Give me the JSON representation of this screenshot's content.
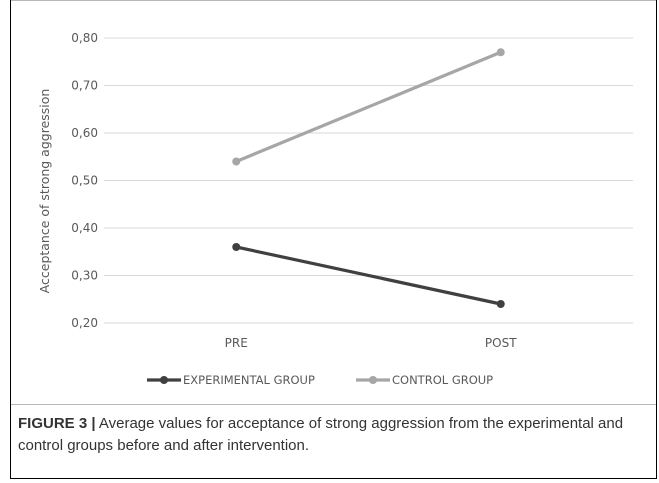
{
  "chart_data": {
    "type": "line",
    "categories": [
      "PRE",
      "POST"
    ],
    "series": [
      {
        "name": "EXPERIMENTAL GROUP",
        "values": [
          0.36,
          0.24
        ],
        "color": "#404040"
      },
      {
        "name": "CONTROL GROUP",
        "values": [
          0.54,
          0.77
        ],
        "color": "#a6a6a6"
      }
    ],
    "xlabel": "",
    "ylabel": "Acceptance of strong aggression",
    "ylim": [
      0.2,
      0.8
    ],
    "yticks": [
      0.2,
      0.3,
      0.4,
      0.5,
      0.6,
      0.7,
      0.8
    ],
    "ytick_labels": [
      "0,20",
      "0,30",
      "0,40",
      "0,50",
      "0,60",
      "0,70",
      "0,80"
    ],
    "grid": true,
    "legend_position": "bottom",
    "gridline_color": "#d9d9d9"
  },
  "caption": {
    "label": "FIGURE 3 |",
    "text": " Average values for acceptance of strong aggression from the experimental and control groups before and after intervention."
  }
}
